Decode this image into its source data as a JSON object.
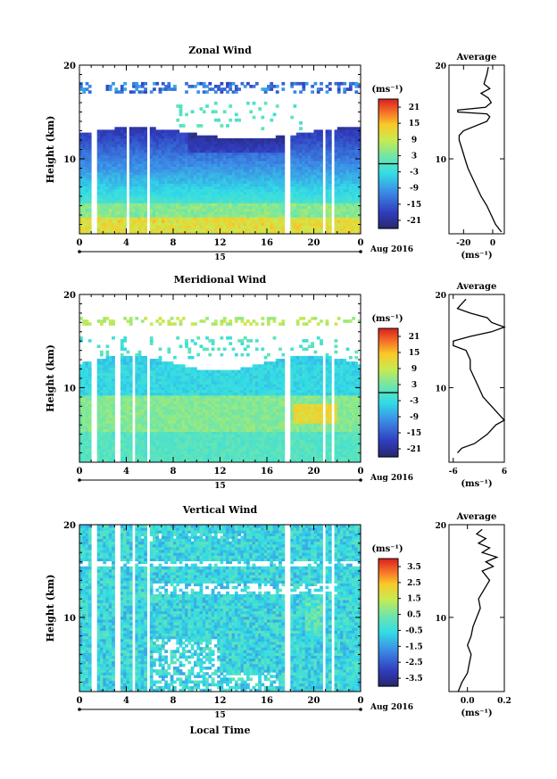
{
  "figure": {
    "xlabel": "Local Time",
    "date_label": "Aug 2016",
    "day_label": "15"
  },
  "chart_data": [
    {
      "type": "heatmap",
      "title": "Zonal Wind",
      "ylabel": "Height (km)",
      "xlabel": "",
      "x_ticks": [
        "0",
        "4",
        "8",
        "12",
        "16",
        "20",
        "0"
      ],
      "y_ticks": [
        "10",
        "20"
      ],
      "ylim": [
        2,
        20
      ],
      "xlim": [
        0,
        24
      ],
      "colorbar": {
        "unit": "(ms⁻¹)",
        "ticks": [
          "21",
          "15",
          "9",
          "3",
          "-3",
          "-9",
          "-15",
          "-21"
        ],
        "range": [
          -24,
          24
        ],
        "marker": 0
      },
      "gaps": [
        [
          1.0,
          1.3
        ],
        [
          3.8,
          4.1
        ],
        [
          4.3,
          4.5
        ],
        [
          5.7,
          6.0
        ],
        [
          17.5,
          17.8
        ],
        [
          20.6,
          20.9
        ],
        [
          21.4,
          21.7
        ]
      ],
      "profile": {
        "title": "Average",
        "xlabel": "(ms⁻¹)",
        "x_ticks": [
          "-20",
          "0"
        ],
        "xlim": [
          -30,
          8
        ],
        "y_ticks": [
          "10",
          "20"
        ],
        "height": [
          2.2,
          3,
          4,
          5,
          6,
          7,
          8,
          9,
          10,
          11,
          12,
          12.5,
          13,
          14,
          14.5,
          14.8,
          15,
          15.2,
          15.5,
          16,
          16.5,
          17,
          17.5,
          18,
          19,
          19.8
        ],
        "values": [
          6,
          2,
          -1,
          -4,
          -8,
          -11,
          -14,
          -17,
          -19,
          -21,
          -23,
          -23,
          -20,
          -4,
          -2,
          -4,
          -24,
          -24,
          -5,
          -1,
          -3,
          -8,
          -2,
          -6,
          -4,
          -3
        ]
      }
    },
    {
      "type": "heatmap",
      "title": "Meridional Wind",
      "ylabel": "Height (km)",
      "xlabel": "",
      "x_ticks": [
        "0",
        "4",
        "8",
        "12",
        "16",
        "20",
        "0"
      ],
      "y_ticks": [
        "10",
        "20"
      ],
      "ylim": [
        2,
        20
      ],
      "xlim": [
        0,
        24
      ],
      "colorbar": {
        "unit": "(ms⁻¹)",
        "ticks": [
          "21",
          "15",
          "9",
          "3",
          "-3",
          "-9",
          "-15",
          "-21"
        ],
        "range": [
          -24,
          24
        ],
        "marker": 0
      },
      "gaps": [
        [
          1.0,
          1.3
        ],
        [
          3.0,
          3.3
        ],
        [
          4.3,
          4.6
        ],
        [
          5.7,
          6.0
        ],
        [
          17.5,
          17.8
        ],
        [
          20.6,
          20.9
        ],
        [
          21.4,
          21.7
        ]
      ],
      "profile": {
        "title": "Average",
        "xlabel": "(ms⁻¹)",
        "x_ticks": [
          "-6",
          "6"
        ],
        "xlim": [
          -7,
          6
        ],
        "y_ticks": [
          "10",
          "20"
        ],
        "height": [
          3,
          3.5,
          4,
          5,
          6,
          6.5,
          7,
          8,
          9,
          10,
          11,
          12,
          13,
          14,
          14.5,
          15,
          15.5,
          16,
          16.5,
          17,
          17.5,
          18,
          18.5,
          19,
          19.5
        ],
        "values": [
          -5,
          -4,
          -1,
          2,
          4,
          6,
          5,
          3,
          1,
          0,
          -1,
          -2,
          -2,
          -3,
          -6,
          -6,
          -2,
          3,
          6,
          3,
          2,
          -2,
          -5,
          -4,
          -3
        ]
      }
    },
    {
      "type": "heatmap",
      "title": "Vertical Wind",
      "ylabel": "Height (km)",
      "xlabel": "Local Time",
      "x_ticks": [
        "0",
        "4",
        "8",
        "12",
        "16",
        "20",
        "0"
      ],
      "y_ticks": [
        "10",
        "20"
      ],
      "ylim": [
        2,
        20
      ],
      "xlim": [
        0,
        24
      ],
      "colorbar": {
        "unit": "(ms⁻¹)",
        "ticks": [
          "3.5",
          "2.5",
          "1.5",
          "0.5",
          "-0.5",
          "-1.5",
          "-2.5",
          "-3.5"
        ],
        "range": [
          -4,
          4
        ],
        "marker": null
      },
      "gaps": [
        [
          1.0,
          1.3
        ],
        [
          3.0,
          3.3
        ],
        [
          4.3,
          4.6
        ],
        [
          5.7,
          6.0
        ],
        [
          17.5,
          17.8
        ],
        [
          20.6,
          20.9
        ],
        [
          21.4,
          21.7
        ]
      ],
      "profile": {
        "title": "Average",
        "xlabel": "(ms⁻¹)",
        "x_ticks": [
          "0.0",
          "0.2"
        ],
        "xlim": [
          -0.1,
          0.2
        ],
        "x_ticks_values": [
          0.0,
          0.2
        ],
        "y_ticks": [
          "10",
          "20"
        ],
        "height": [
          2,
          3,
          4,
          5,
          6,
          7,
          8,
          9,
          10,
          11,
          12,
          13,
          14,
          15,
          15.5,
          16,
          16.5,
          17,
          17.5,
          18,
          18.5,
          19,
          19.5
        ],
        "values": [
          -0.05,
          -0.03,
          0.0,
          0.01,
          0.02,
          0.0,
          0.02,
          0.03,
          0.05,
          0.07,
          0.06,
          0.09,
          0.12,
          0.08,
          0.14,
          0.1,
          0.16,
          0.08,
          0.12,
          0.06,
          0.1,
          0.05,
          0.08
        ]
      }
    }
  ]
}
